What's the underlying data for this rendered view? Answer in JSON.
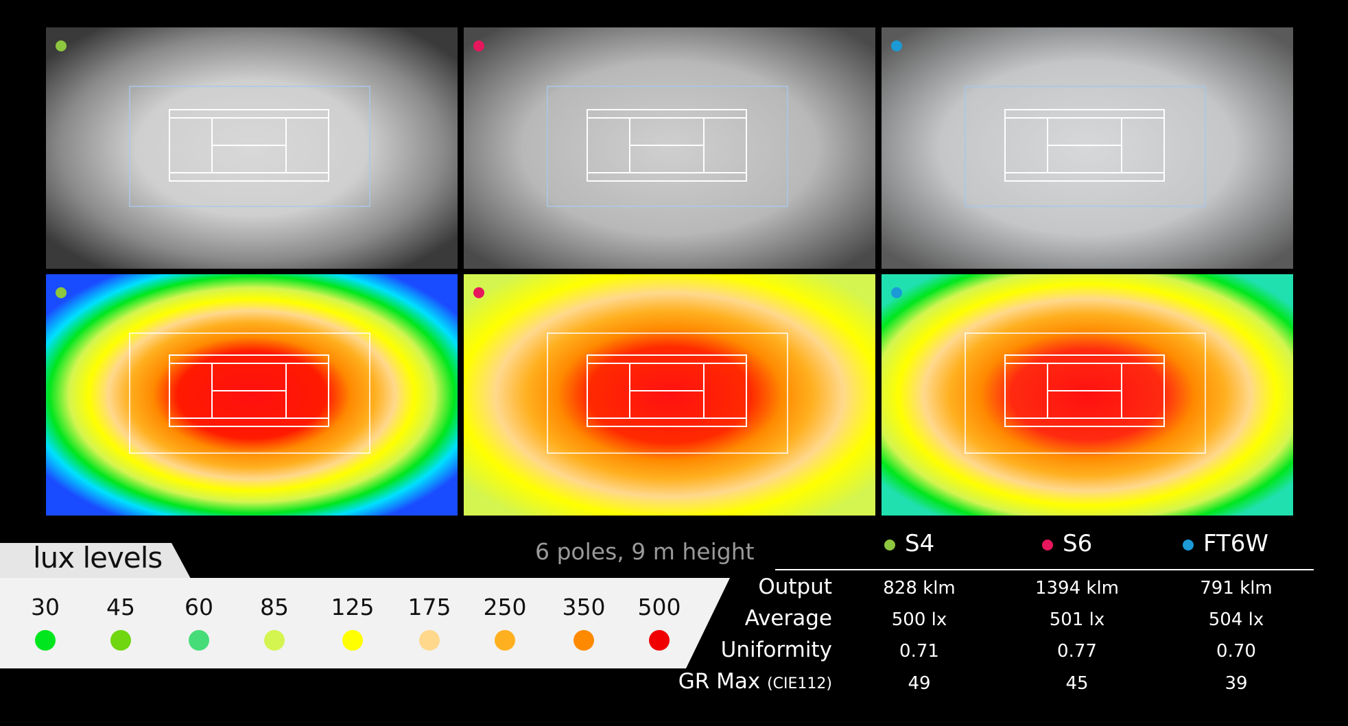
{
  "series": [
    {
      "name": "S4",
      "color": "#8dc63f"
    },
    {
      "name": "S6",
      "color": "#e6175c"
    },
    {
      "name": "FT6W",
      "color": "#1b9ad6"
    }
  ],
  "subtitle": "6 poles, 9 m height",
  "legend": {
    "title": "lux levels",
    "levels": [
      {
        "value": "30",
        "color": "#00e61e"
      },
      {
        "value": "45",
        "color": "#6fd60f"
      },
      {
        "value": "60",
        "color": "#46dc78"
      },
      {
        "value": "85",
        "color": "#d4f550"
      },
      {
        "value": "125",
        "color": "#ffff00"
      },
      {
        "value": "175",
        "color": "#ffd88c"
      },
      {
        "value": "250",
        "color": "#ffb020"
      },
      {
        "value": "350",
        "color": "#ff8a00"
      },
      {
        "value": "500",
        "color": "#f00000"
      }
    ]
  },
  "table": {
    "rows": [
      {
        "label": "Output",
        "values": [
          "828 klm",
          "1394 klm",
          "791 klm"
        ]
      },
      {
        "label": "Average",
        "values": [
          "500 lx",
          "501 lx",
          "504 lx"
        ]
      },
      {
        "label": "Uniformity",
        "values": [
          "0.71",
          "0.77",
          "0.70"
        ]
      },
      {
        "label": "GR Max",
        "note": "(CIE112)",
        "values": [
          "49",
          "45",
          "39"
        ]
      }
    ]
  },
  "chart_data": {
    "type": "heatmap",
    "description_units": "lux",
    "series": [
      {
        "name": "S4",
        "output": "828 klm",
        "average": "500 lx",
        "uniformity": 0.71,
        "gr_max": 49
      },
      {
        "name": "S6",
        "output": "1394 klm",
        "average": "501 lx",
        "uniformity": 0.77,
        "gr_max": 45
      },
      {
        "name": "FT6W",
        "output": "791 klm",
        "average": "504 lx",
        "uniformity": 0.7,
        "gr_max": 39
      }
    ],
    "color_scale": [
      30,
      45,
      60,
      85,
      125,
      175,
      250,
      350,
      500
    ]
  }
}
